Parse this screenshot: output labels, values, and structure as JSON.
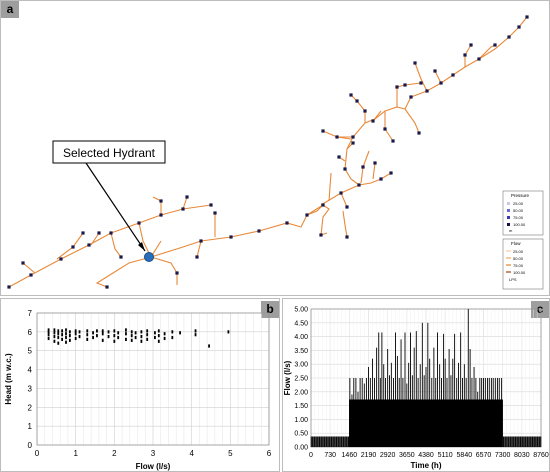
{
  "panels": {
    "a": {
      "tag": "a",
      "callout": "Selected Hydrant"
    },
    "b": {
      "tag": "b"
    },
    "c": {
      "tag": "c"
    }
  },
  "legends": {
    "pressure": {
      "title": "Pressure",
      "entries": [
        "25.00",
        "50.00",
        "75.00",
        "100.00"
      ],
      "unit": "m"
    },
    "flow": {
      "title": "Flow",
      "entries": [
        "25.00",
        "50.00",
        "75.00",
        "100.00"
      ],
      "unit": "LPS"
    }
  },
  "colors": {
    "pipe": "#e8893a",
    "node": "#1a1a4a",
    "hydrant": "#2a6db8",
    "scatter": "#000000"
  },
  "chart_data": [
    {
      "id": "b",
      "type": "scatter",
      "title": "",
      "xlabel": "Flow (l/s)",
      "ylabel": "Head (m w.c.)",
      "xlim": [
        0,
        6
      ],
      "ylim": [
        0,
        7
      ],
      "xticks": [
        "0",
        "1",
        "2",
        "3",
        "4",
        "5",
        "6"
      ],
      "yticks": [
        "0",
        "1",
        "2",
        "3",
        "4",
        "5",
        "6",
        "7"
      ],
      "grid": true,
      "points": [
        [
          0.3,
          5.65
        ],
        [
          0.3,
          5.85
        ],
        [
          0.3,
          6.0
        ],
        [
          0.3,
          6.1
        ],
        [
          0.45,
          5.5
        ],
        [
          0.45,
          5.75
        ],
        [
          0.45,
          5.95
        ],
        [
          0.45,
          6.1
        ],
        [
          0.55,
          5.4
        ],
        [
          0.55,
          5.7
        ],
        [
          0.55,
          5.9
        ],
        [
          0.55,
          6.05
        ],
        [
          0.65,
          5.6
        ],
        [
          0.65,
          5.85
        ],
        [
          0.65,
          6.05
        ],
        [
          0.75,
          5.45
        ],
        [
          0.75,
          5.7
        ],
        [
          0.75,
          5.9
        ],
        [
          0.75,
          6.1
        ],
        [
          0.85,
          5.55
        ],
        [
          0.85,
          5.8
        ],
        [
          0.85,
          6.0
        ],
        [
          1.0,
          5.65
        ],
        [
          1.0,
          5.9
        ],
        [
          1.0,
          6.05
        ],
        [
          1.1,
          5.75
        ],
        [
          1.1,
          6.0
        ],
        [
          1.3,
          5.6
        ],
        [
          1.3,
          5.85
        ],
        [
          1.3,
          6.05
        ],
        [
          1.45,
          5.7
        ],
        [
          1.45,
          5.95
        ],
        [
          1.55,
          5.8
        ],
        [
          1.55,
          6.05
        ],
        [
          1.7,
          5.55
        ],
        [
          1.7,
          5.9
        ],
        [
          1.7,
          6.05
        ],
        [
          1.85,
          5.75
        ],
        [
          1.85,
          6.0
        ],
        [
          2.0,
          5.5
        ],
        [
          2.0,
          5.8
        ],
        [
          2.0,
          6.05
        ],
        [
          2.1,
          5.7
        ],
        [
          2.1,
          5.95
        ],
        [
          2.3,
          5.6
        ],
        [
          2.3,
          5.9
        ],
        [
          2.3,
          6.1
        ],
        [
          2.45,
          5.55
        ],
        [
          2.45,
          5.8
        ],
        [
          2.45,
          6.0
        ],
        [
          2.55,
          5.7
        ],
        [
          2.55,
          5.95
        ],
        [
          2.7,
          5.5
        ],
        [
          2.7,
          5.75
        ],
        [
          2.7,
          6.0
        ],
        [
          2.85,
          5.6
        ],
        [
          2.85,
          5.85
        ],
        [
          2.85,
          6.05
        ],
        [
          3.05,
          5.7
        ],
        [
          3.05,
          5.95
        ],
        [
          3.15,
          5.5
        ],
        [
          3.15,
          5.8
        ],
        [
          3.15,
          6.05
        ],
        [
          3.3,
          5.65
        ],
        [
          3.3,
          5.9
        ],
        [
          3.5,
          5.7
        ],
        [
          3.5,
          6.0
        ],
        [
          3.7,
          5.95
        ],
        [
          4.1,
          5.85
        ],
        [
          4.1,
          6.05
        ],
        [
          4.45,
          5.25
        ],
        [
          4.95,
          6.0
        ]
      ]
    },
    {
      "id": "c",
      "type": "bar",
      "title": "",
      "xlabel": "Time (h)",
      "ylabel": "Flow (l/s)",
      "xlim": [
        0,
        8760
      ],
      "ylim": [
        0,
        5
      ],
      "xticks": [
        "0",
        "730",
        "1460",
        "2190",
        "2920",
        "3650",
        "4380",
        "5110",
        "5840",
        "6570",
        "7300",
        "8030",
        "8760"
      ],
      "yticks": [
        "0.00",
        "0.50",
        "1.00",
        "1.50",
        "2.00",
        "2.50",
        "3.00",
        "3.50",
        "4.00",
        "4.50",
        "5.00"
      ],
      "grid": true,
      "baseline": 0.38,
      "active_range": [
        1460,
        7300
      ],
      "fill_level": 1.72,
      "spikes": [
        [
          1480,
          2.5
        ],
        [
          1560,
          1.9
        ],
        [
          1630,
          2.5
        ],
        [
          1710,
          2.5
        ],
        [
          1790,
          2.0
        ],
        [
          1870,
          2.5
        ],
        [
          1950,
          2.5
        ],
        [
          2030,
          2.3
        ],
        [
          2110,
          2.5
        ],
        [
          2190,
          2.9
        ],
        [
          2260,
          2.5
        ],
        [
          2340,
          3.2
        ],
        [
          2420,
          2.5
        ],
        [
          2500,
          3.6
        ],
        [
          2580,
          4.15
        ],
        [
          2640,
          2.5
        ],
        [
          2700,
          4.15
        ],
        [
          2770,
          3.0
        ],
        [
          2840,
          2.5
        ],
        [
          2920,
          3.55
        ],
        [
          2990,
          2.6
        ],
        [
          3060,
          3.05
        ],
        [
          3140,
          2.5
        ],
        [
          3220,
          4.15
        ],
        [
          3290,
          3.3
        ],
        [
          3360,
          2.5
        ],
        [
          3430,
          3.9
        ],
        [
          3500,
          2.5
        ],
        [
          3580,
          4.15
        ],
        [
          3650,
          2.3
        ],
        [
          3720,
          3.05
        ],
        [
          3790,
          4.15
        ],
        [
          3860,
          2.6
        ],
        [
          3930,
          3.6
        ],
        [
          4010,
          4.2
        ],
        [
          4080,
          2.5
        ],
        [
          4160,
          3.0
        ],
        [
          4240,
          4.5
        ],
        [
          4310,
          2.6
        ],
        [
          4380,
          2.9
        ],
        [
          4450,
          4.5
        ],
        [
          4520,
          3.2
        ],
        [
          4600,
          2.5
        ],
        [
          4680,
          3.6
        ],
        [
          4750,
          2.5
        ],
        [
          4820,
          4.15
        ],
        [
          4900,
          3.0
        ],
        [
          4970,
          2.5
        ],
        [
          5050,
          4.1
        ],
        [
          5110,
          3.2
        ],
        [
          5180,
          2.5
        ],
        [
          5260,
          3.55
        ],
        [
          5330,
          2.6
        ],
        [
          5400,
          3.2
        ],
        [
          5470,
          4.1
        ],
        [
          5550,
          2.5
        ],
        [
          5620,
          3.05
        ],
        [
          5700,
          4.15
        ],
        [
          5770,
          2.5
        ],
        [
          5840,
          3.0
        ],
        [
          5910,
          2.5
        ],
        [
          5990,
          5.0
        ],
        [
          6060,
          3.55
        ],
        [
          6130,
          2.5
        ],
        [
          6210,
          2.9
        ],
        [
          6280,
          2.5
        ],
        [
          6350,
          2.0
        ],
        [
          6430,
          2.5
        ],
        [
          6500,
          2.5
        ],
        [
          6570,
          2.5
        ],
        [
          6640,
          2.5
        ],
        [
          6720,
          2.5
        ],
        [
          6790,
          2.5
        ],
        [
          6870,
          2.5
        ],
        [
          6940,
          2.5
        ],
        [
          7020,
          2.5
        ],
        [
          7100,
          2.5
        ],
        [
          7170,
          2.5
        ],
        [
          7260,
          2.5
        ]
      ]
    }
  ]
}
